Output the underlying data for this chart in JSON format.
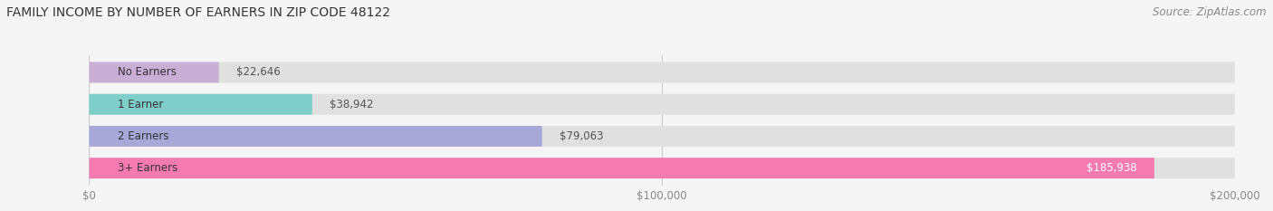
{
  "title": "FAMILY INCOME BY NUMBER OF EARNERS IN ZIP CODE 48122",
  "source": "Source: ZipAtlas.com",
  "categories": [
    "No Earners",
    "1 Earner",
    "2 Earners",
    "3+ Earners"
  ],
  "values": [
    22646,
    38942,
    79063,
    185938
  ],
  "bar_colors": [
    "#c9aed6",
    "#7ececa",
    "#a8a8d8",
    "#f47ab0"
  ],
  "label_colors": [
    "#555555",
    "#555555",
    "#555555",
    "#ffffff"
  ],
  "xlim": [
    0,
    200000
  ],
  "background_color": "#f5f5f5",
  "bar_bg_color": "#e0e0e0",
  "title_fontsize": 10,
  "source_fontsize": 8.5,
  "label_fontsize": 8.5,
  "tick_fontsize": 8.5,
  "bar_height": 0.65,
  "value_labels": [
    "$22,646",
    "$38,942",
    "$79,063",
    "$185,938"
  ],
  "xtick_values": [
    0,
    100000,
    200000
  ],
  "xtick_labels": [
    "$0",
    "$100,000",
    "$200,000"
  ]
}
